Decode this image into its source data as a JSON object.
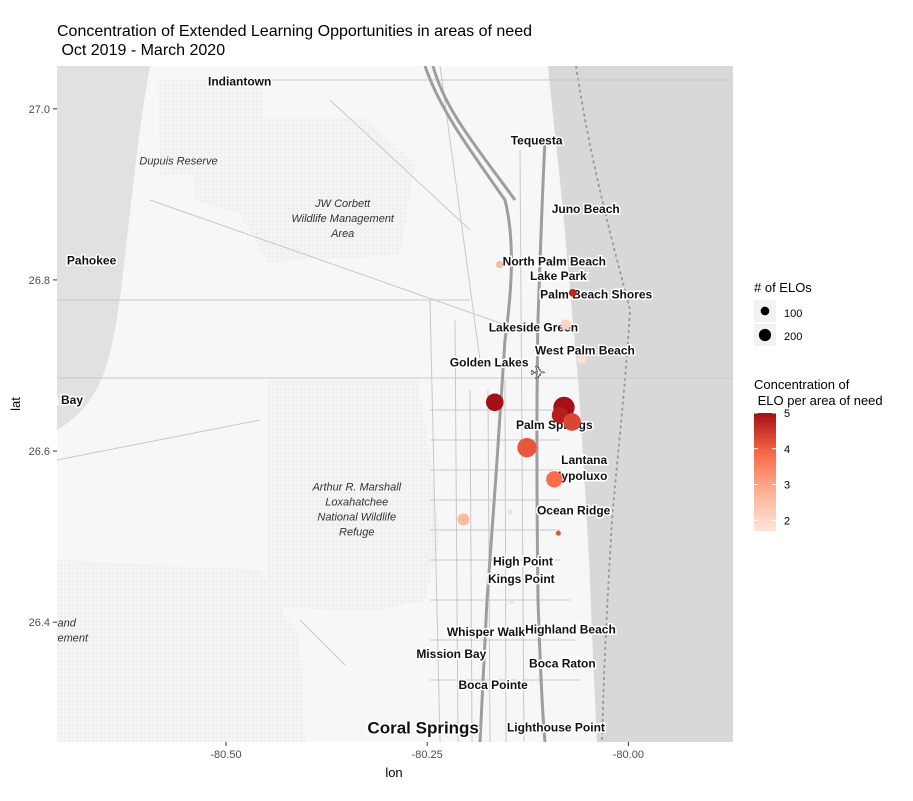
{
  "chart_data": {
    "type": "scatter",
    "title": "Concentration of Extended Learning Opportunities in areas of need",
    "subtitle": " Oct 2019 - March 2020",
    "xlabel": "lon",
    "ylabel": "lat",
    "xlim": [
      -80.71,
      -79.87
    ],
    "ylim": [
      26.26,
      27.05
    ],
    "x_ticks": [
      -80.5,
      -80.25,
      -80.0
    ],
    "x_tick_labels": [
      "-80.50",
      "-80.25",
      "-80.00"
    ],
    "y_ticks": [
      26.4,
      26.6,
      26.8,
      27.0
    ],
    "y_tick_labels": [
      "26.4",
      "26.6",
      "26.8",
      "27.0"
    ],
    "grid": false,
    "legend_placement": "right",
    "size_legend": {
      "title": "# of ELOs",
      "breaks": [
        100,
        200
      ],
      "labels": [
        "100",
        "200"
      ]
    },
    "color_legend": {
      "title_line1": "Concentration of",
      "title_line2": " ELO per area of need",
      "breaks": [
        2,
        3,
        4,
        5
      ],
      "labels": [
        "2",
        "3",
        "4",
        "5"
      ],
      "range": [
        1.7,
        5
      ],
      "low_color": "#FEE5D9",
      "high_color": "#A50F15"
    },
    "points": [
      {
        "lon": -80.16,
        "lat": 26.818,
        "n_elos": 25,
        "concentration": 2.6
      },
      {
        "lon": -80.069,
        "lat": 26.785,
        "n_elos": 30,
        "concentration": 4.7
      },
      {
        "lon": -80.078,
        "lat": 26.748,
        "n_elos": 50,
        "concentration": 2.1
      },
      {
        "lon": -80.058,
        "lat": 26.707,
        "n_elos": 35,
        "concentration": 1.8
      },
      {
        "lon": -80.166,
        "lat": 26.657,
        "n_elos": 150,
        "concentration": 5.0
      },
      {
        "lon": -80.08,
        "lat": 26.651,
        "n_elos": 220,
        "concentration": 5.0
      },
      {
        "lon": -80.085,
        "lat": 26.642,
        "n_elos": 130,
        "concentration": 4.8
      },
      {
        "lon": -80.07,
        "lat": 26.634,
        "n_elos": 150,
        "concentration": 4.3
      },
      {
        "lon": -80.126,
        "lat": 26.604,
        "n_elos": 180,
        "concentration": 4.1
      },
      {
        "lon": -80.092,
        "lat": 26.567,
        "n_elos": 130,
        "concentration": 3.8
      },
      {
        "lon": -80.205,
        "lat": 26.52,
        "n_elos": 70,
        "concentration": 2.6
      },
      {
        "lon": -80.147,
        "lat": 26.529,
        "n_elos": 15,
        "concentration": 1.8
      },
      {
        "lon": -80.087,
        "lat": 26.504,
        "n_elos": 12,
        "concentration": 4.2
      },
      {
        "lon": -80.145,
        "lat": 26.424,
        "n_elos": 8,
        "concentration": 1.9
      }
    ]
  },
  "map": {
    "places": [
      {
        "name": "Indiantown",
        "lon": -80.483,
        "lat": 27.027
      },
      {
        "name": "Tequesta",
        "lon": -80.114,
        "lat": 26.958
      },
      {
        "name": "Juno Beach",
        "lon": -80.053,
        "lat": 26.878
      },
      {
        "name": "Pahokee",
        "lon": -80.667,
        "lat": 26.818
      },
      {
        "name": "North Palm Beach",
        "lon": -80.092,
        "lat": 26.817
      },
      {
        "name": "Lake Park",
        "lon": -80.087,
        "lat": 26.8
      },
      {
        "name": "Palm Beach Shores",
        "lon": -80.04,
        "lat": 26.778
      },
      {
        "name": "Lakeside Green",
        "lon": -80.118,
        "lat": 26.74
      },
      {
        "name": "West Palm Beach",
        "lon": -80.054,
        "lat": 26.713
      },
      {
        "name": "Golden Lakes",
        "lon": -80.173,
        "lat": 26.699
      },
      {
        "name": "n Bay",
        "lon": -80.698,
        "lat": 26.655
      },
      {
        "name": "Palm Springs",
        "lon": -80.092,
        "lat": 26.626
      },
      {
        "name": "Lantana",
        "lon": -80.055,
        "lat": 26.585
      },
      {
        "name": "Hypoluxo",
        "lon": -80.06,
        "lat": 26.566
      },
      {
        "name": "Ocean Ridge",
        "lon": -80.068,
        "lat": 26.526
      },
      {
        "name": "High Point",
        "lon": -80.131,
        "lat": 26.466
      },
      {
        "name": "Kings Point",
        "lon": -80.133,
        "lat": 26.446
      },
      {
        "name": "Whisper Walk",
        "lon": -80.177,
        "lat": 26.384
      },
      {
        "name": "Highland Beach",
        "lon": -80.072,
        "lat": 26.387
      },
      {
        "name": "Mission Bay",
        "lon": -80.22,
        "lat": 26.358
      },
      {
        "name": "Boca Raton",
        "lon": -80.082,
        "lat": 26.347
      },
      {
        "name": "Boca Pointe",
        "lon": -80.168,
        "lat": 26.322
      },
      {
        "name": "Coral Springs",
        "lon": -80.255,
        "lat": 26.27
      },
      {
        "name": "Lighthouse Point",
        "lon": -80.09,
        "lat": 26.272
      }
    ],
    "areas": [
      {
        "lines": [
          "Dupuis Reserve"
        ],
        "lon": -80.559,
        "lat": 26.935
      },
      {
        "lines": [
          "JW Corbett",
          "Wildlife Management",
          "Area"
        ],
        "lon": -80.355,
        "lat": 26.885
      },
      {
        "lines": [
          "Arthur R. Marshall",
          "Loxahatchee",
          "National Wildlife",
          "Refuge"
        ],
        "lon": -80.3375,
        "lat": 26.554
      },
      {
        "lines": [
          "and",
          "agement"
        ],
        "lon": -80.698,
        "lat": 26.395
      }
    ]
  }
}
